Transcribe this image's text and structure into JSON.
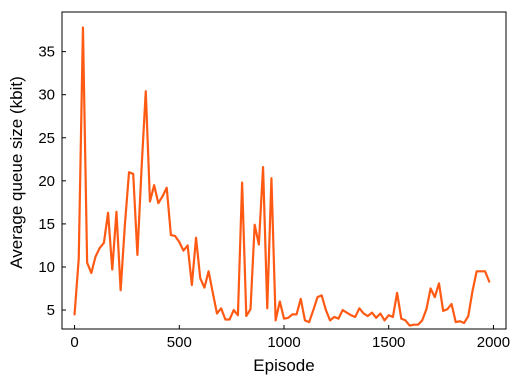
{
  "chart_data": {
    "type": "line",
    "xlabel": "Episode",
    "ylabel": "Average queue size (kbit)",
    "xlim": [
      -60,
      2060
    ],
    "ylim": [
      2.8,
      39.6
    ],
    "xticks": [
      0,
      500,
      1000,
      1500,
      2000
    ],
    "yticks": [
      5,
      10,
      15,
      20,
      25,
      30,
      35
    ],
    "grid": false,
    "line_color": "#ff5a14",
    "series": [
      {
        "x": [
          0,
          20,
          40,
          60,
          80,
          100,
          120,
          140,
          160,
          180,
          200,
          220,
          240,
          260,
          280,
          300,
          320,
          340,
          360,
          380,
          400,
          420,
          440,
          460,
          480,
          500,
          520,
          540,
          560,
          580,
          600,
          620,
          640,
          660,
          680,
          700,
          720,
          740,
          760,
          780,
          800,
          820,
          840,
          860,
          880,
          900,
          920,
          940,
          960,
          980,
          1000,
          1020,
          1040,
          1060,
          1080,
          1100,
          1120,
          1140,
          1160,
          1180,
          1200,
          1220,
          1240,
          1260,
          1280,
          1300,
          1320,
          1340,
          1360,
          1380,
          1400,
          1420,
          1440,
          1460,
          1480,
          1500,
          1520,
          1540,
          1560,
          1580,
          1600,
          1620,
          1640,
          1660,
          1680,
          1700,
          1720,
          1740,
          1760,
          1780,
          1800,
          1820,
          1840,
          1860,
          1880,
          1900,
          1920,
          1940,
          1960,
          1980
        ],
        "y": [
          4.5,
          11,
          37.8,
          10.5,
          9.3,
          11.2,
          12.2,
          12.8,
          16.3,
          9.7,
          16.4,
          7.3,
          14.8,
          21,
          20.8,
          11.4,
          21.5,
          30.4,
          17.6,
          19.5,
          17.4,
          18.2,
          19.2,
          13.7,
          13.6,
          12.9,
          11.9,
          12.5,
          7.9,
          13.4,
          8.7,
          7.6,
          9.5,
          7,
          4.6,
          5.2,
          3.9,
          3.9,
          5,
          4.4,
          19.8,
          4.3,
          5.1,
          14.9,
          12.6,
          21.6,
          5.2,
          20.3,
          3.8,
          6,
          4,
          4.1,
          4.5,
          4.5,
          6.3,
          3.8,
          3.6,
          5,
          6.5,
          6.7,
          5,
          3.8,
          4.2,
          4,
          5,
          4.7,
          4.4,
          4.2,
          5.2,
          4.6,
          4.3,
          4.7,
          4.1,
          4.6,
          3.8,
          4.4,
          4.2,
          7,
          4,
          3.8,
          3.2,
          3.3,
          3.3,
          3.8,
          5.1,
          7.5,
          6.5,
          8.1,
          4.9,
          5.1,
          5.7,
          3.6,
          3.7,
          3.5,
          4.3,
          7.2,
          9.5,
          9.5,
          9.5,
          8.3
        ]
      }
    ]
  }
}
